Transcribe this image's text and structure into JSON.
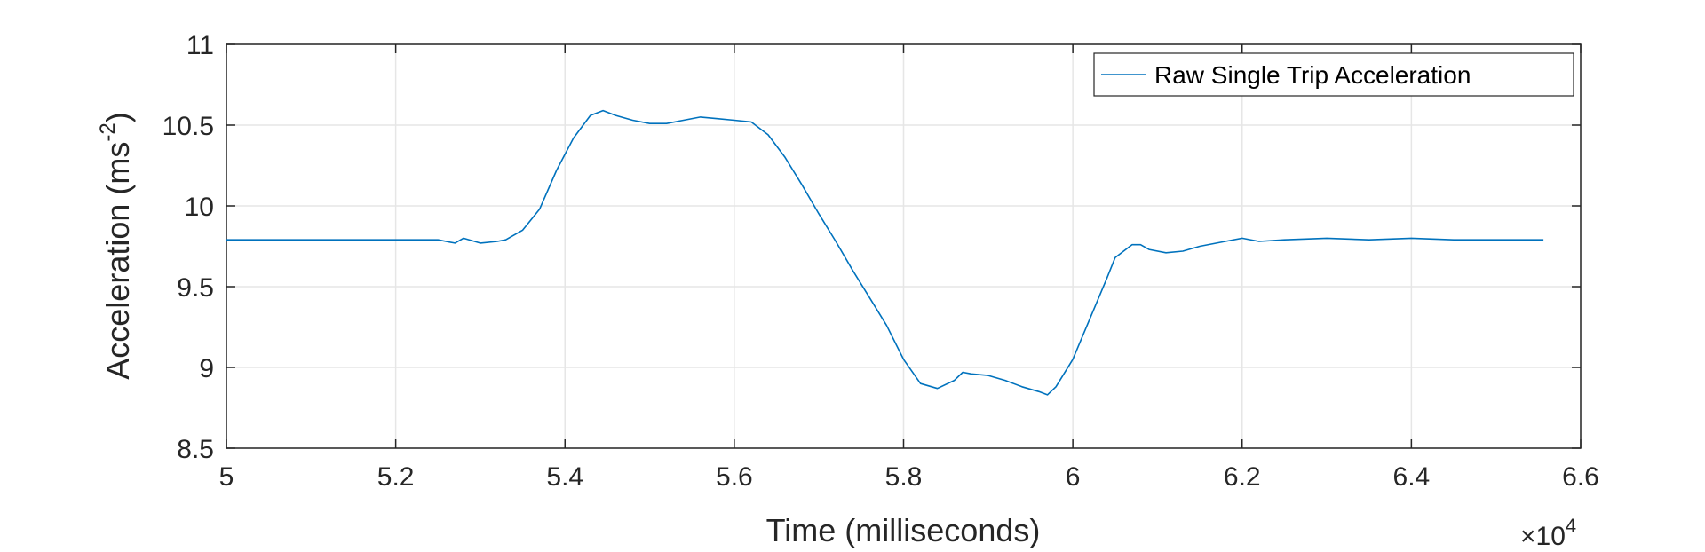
{
  "chart_data": {
    "type": "line",
    "xlabel": "Time (milliseconds)",
    "ylabel_base": "Acceleration (ms",
    "ylabel_sup": "-2",
    "ylabel_end": ")",
    "x_exponent_prefix": "×10",
    "x_exponent_sup": "4",
    "xlim": [
      5.0,
      6.6
    ],
    "ylim": [
      8.5,
      11.0
    ],
    "x_scale_factor": 10000,
    "xticks": [
      5.0,
      5.2,
      5.4,
      5.6,
      5.8,
      6.0,
      6.2,
      6.4,
      6.6
    ],
    "xtick_labels": [
      "5",
      "5.2",
      "5.4",
      "5.6",
      "5.8",
      "6",
      "6.2",
      "6.4",
      "6.6"
    ],
    "yticks": [
      8.5,
      9.0,
      9.5,
      10.0,
      10.5,
      11.0
    ],
    "ytick_labels": [
      "8.5",
      "9",
      "9.5",
      "10",
      "10.5",
      "11"
    ],
    "grid": true,
    "legend_position": "top-right",
    "series": [
      {
        "name": "Raw Single Trip Acceleration",
        "color": "#0072BD",
        "x": [
          5.0,
          5.1,
          5.2,
          5.25,
          5.27,
          5.28,
          5.3,
          5.32,
          5.33,
          5.35,
          5.37,
          5.39,
          5.41,
          5.43,
          5.445,
          5.46,
          5.48,
          5.5,
          5.52,
          5.54,
          5.56,
          5.58,
          5.6,
          5.62,
          5.64,
          5.66,
          5.68,
          5.7,
          5.72,
          5.74,
          5.76,
          5.78,
          5.8,
          5.82,
          5.84,
          5.86,
          5.87,
          5.88,
          5.9,
          5.92,
          5.94,
          5.96,
          5.97,
          5.98,
          6.0,
          6.02,
          6.04,
          6.05,
          6.07,
          6.08,
          6.09,
          6.11,
          6.13,
          6.15,
          6.18,
          6.2,
          6.22,
          6.25,
          6.3,
          6.35,
          6.4,
          6.45,
          6.5,
          6.556
        ],
        "y": [
          9.79,
          9.79,
          9.79,
          9.79,
          9.77,
          9.8,
          9.77,
          9.78,
          9.79,
          9.85,
          9.98,
          10.22,
          10.42,
          10.56,
          10.59,
          10.56,
          10.53,
          10.51,
          10.51,
          10.53,
          10.55,
          10.54,
          10.53,
          10.52,
          10.44,
          10.3,
          10.13,
          9.95,
          9.78,
          9.6,
          9.43,
          9.26,
          9.05,
          8.9,
          8.87,
          8.92,
          8.97,
          8.96,
          8.95,
          8.92,
          8.88,
          8.85,
          8.83,
          8.88,
          9.05,
          9.3,
          9.55,
          9.68,
          9.76,
          9.76,
          9.73,
          9.71,
          9.72,
          9.75,
          9.78,
          9.8,
          9.78,
          9.79,
          9.8,
          9.79,
          9.8,
          9.79,
          9.79,
          9.79
        ]
      }
    ]
  }
}
